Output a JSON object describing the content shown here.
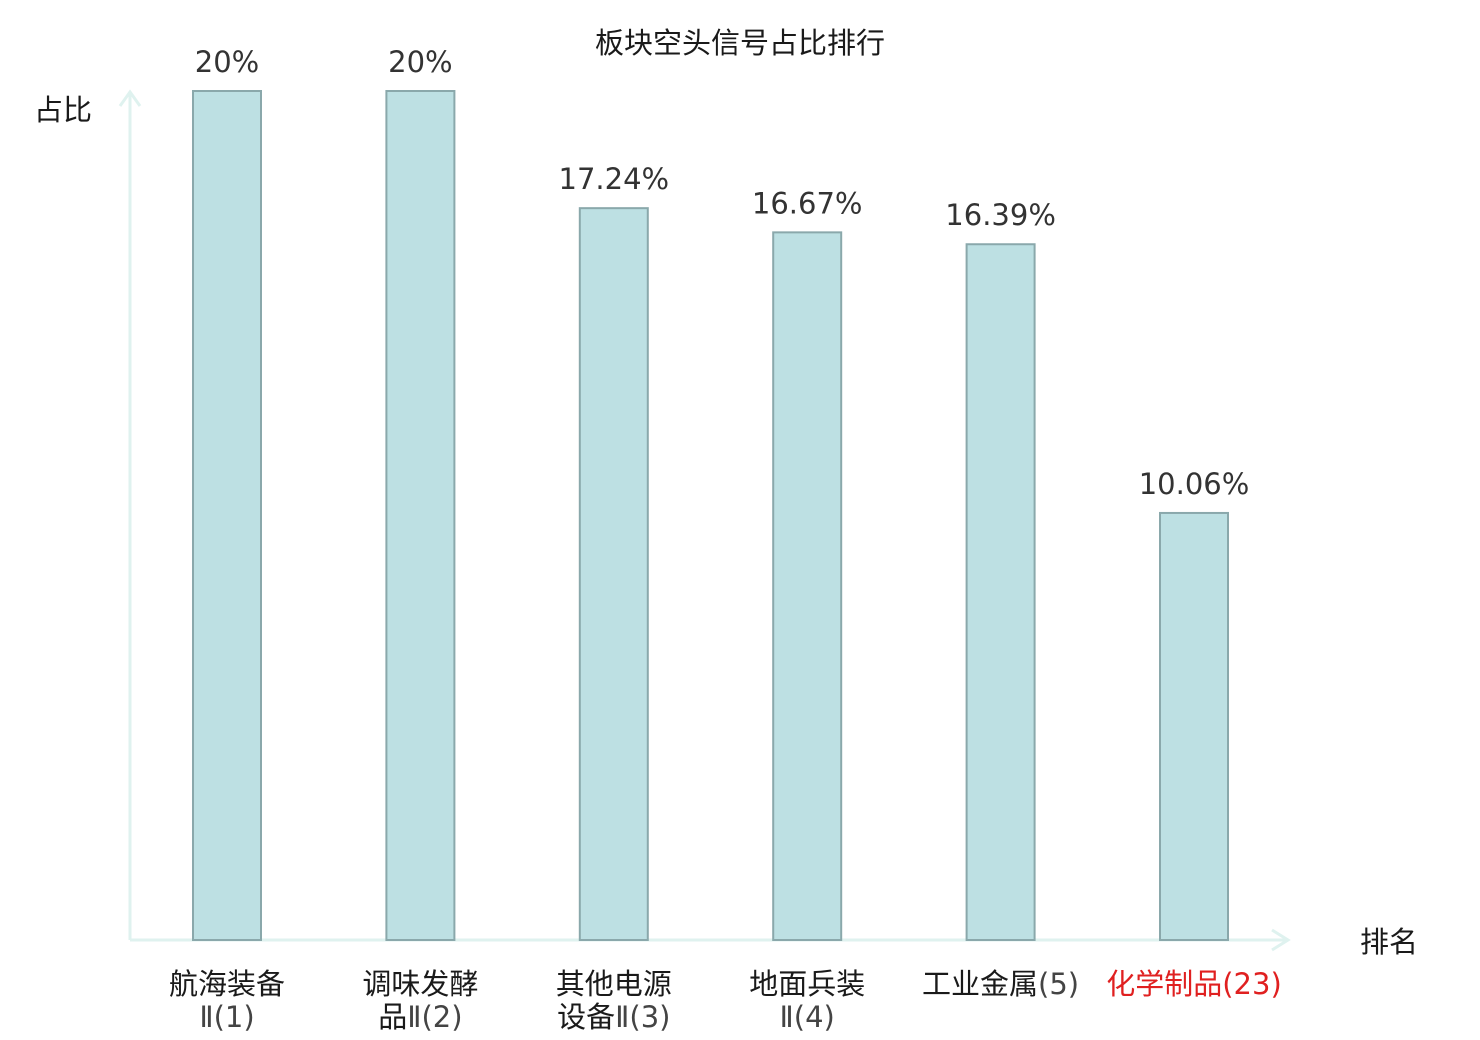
{
  "chart_data": {
    "type": "bar",
    "title": "板块空头信号占比排行",
    "ylabel": "占比",
    "xlabel": "排名",
    "ylim": [
      0,
      20
    ],
    "grid": false,
    "highlight_color": "#e02020",
    "bar_color": "#bde0e3",
    "axis_color": "#dff2ef",
    "categories": [
      {
        "lines": [
          {
            "name": "航海装备",
            "rank": ""
          },
          {
            "name": "",
            "rank": "Ⅱ(1)"
          }
        ],
        "highlight": false
      },
      {
        "lines": [
          {
            "name": "调味发酵",
            "rank": ""
          },
          {
            "name": "品",
            "rank": "Ⅱ(2)"
          }
        ],
        "highlight": false
      },
      {
        "lines": [
          {
            "name": "其他电源",
            "rank": ""
          },
          {
            "name": "设备",
            "rank": "Ⅱ(3)"
          }
        ],
        "highlight": false
      },
      {
        "lines": [
          {
            "name": "地面兵装",
            "rank": ""
          },
          {
            "name": "",
            "rank": "Ⅱ(4)"
          }
        ],
        "highlight": false
      },
      {
        "lines": [
          {
            "name": "工业金属",
            "rank": "(5)"
          }
        ],
        "highlight": false
      },
      {
        "lines": [
          {
            "name": "化学制品",
            "rank": "(23)"
          }
        ],
        "highlight": true
      }
    ],
    "values": [
      20,
      20,
      17.24,
      16.67,
      16.39,
      10.06
    ],
    "value_labels": [
      "20%",
      "20%",
      "17.24%",
      "16.67%",
      "16.39%",
      "10.06%"
    ]
  }
}
